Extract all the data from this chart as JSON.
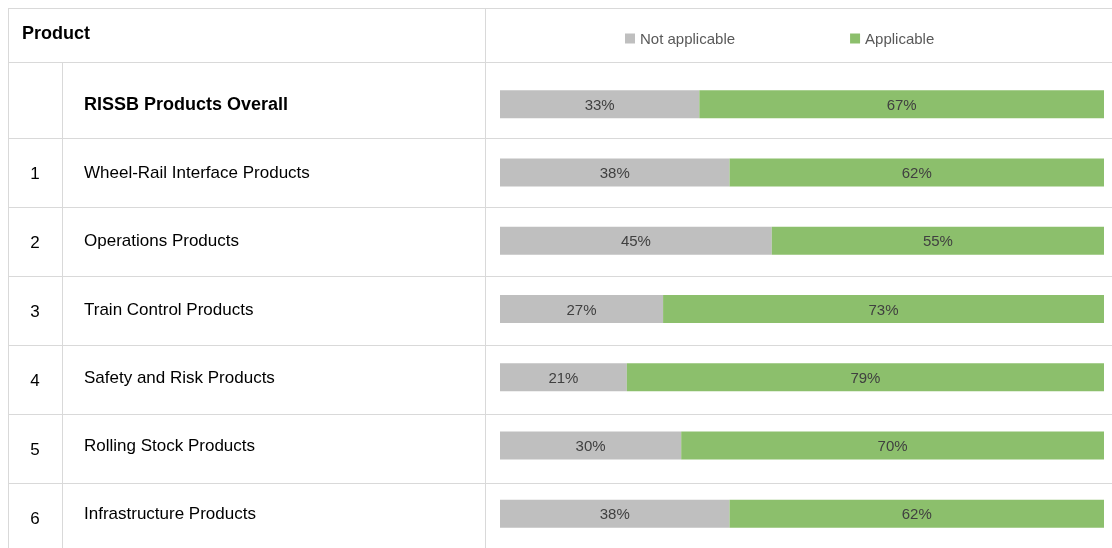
{
  "chart_data": {
    "type": "bar",
    "orientation": "horizontal",
    "stacked": true,
    "ylabel": "Product",
    "categories": [
      "RISSB Products Overall",
      "Wheel-Rail Interface Products",
      "Operations Products",
      "Train Control Products",
      "Safety and Risk Products",
      "Rolling Stock Products",
      "Infrastructure Products"
    ],
    "annotations": [
      "1",
      "2",
      "3",
      "4",
      "5",
      "6"
    ],
    "series": [
      {
        "name": "Not applicable",
        "color": "#bfbfbf",
        "values": [
          33,
          38,
          45,
          27,
          21,
          30,
          38
        ],
        "value_labels": [
          "33%",
          "38%",
          "45%",
          "27%",
          "21%",
          "30%",
          "38%"
        ]
      },
      {
        "name": "Applicable",
        "color": "#8cbf6c",
        "values": [
          67,
          62,
          55,
          73,
          79,
          70,
          62
        ],
        "value_labels": [
          "67%",
          "62%",
          "55%",
          "73%",
          "79%",
          "70%",
          "62%"
        ]
      }
    ],
    "legend": "top",
    "tick_labels": "y"
  }
}
